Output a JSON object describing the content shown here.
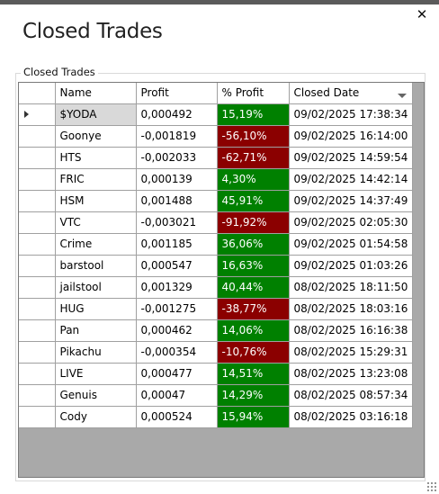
{
  "window": {
    "title": "Closed Trades",
    "close_glyph": "✕",
    "close_icon": "close-icon"
  },
  "group": {
    "label": "Closed Trades"
  },
  "grid": {
    "columns": [
      "Name",
      "Profit",
      "% Profit",
      "Closed Date"
    ],
    "sorted_column": "Closed Date",
    "sort_direction": "descending",
    "selected_row": 0,
    "colors": {
      "positive": "#008000",
      "negative": "#8b0000",
      "selected": "#d9d9d9"
    },
    "rows": [
      {
        "name": "$YODA",
        "profit": "0,000492",
        "pct": "15,19%",
        "date": "09/02/2025 17:38:34",
        "positive": true
      },
      {
        "name": "Goonye",
        "profit": "-0,001819",
        "pct": "-56,10%",
        "date": "09/02/2025 16:14:00",
        "positive": false
      },
      {
        "name": "HTS",
        "profit": "-0,002033",
        "pct": "-62,71%",
        "date": "09/02/2025 14:59:54",
        "positive": false
      },
      {
        "name": "FRIC",
        "profit": "0,000139",
        "pct": "4,30%",
        "date": "09/02/2025 14:42:14",
        "positive": true
      },
      {
        "name": "HSM",
        "profit": "0,001488",
        "pct": "45,91%",
        "date": "09/02/2025 14:37:49",
        "positive": true
      },
      {
        "name": "VTC",
        "profit": "-0,003021",
        "pct": "-91,92%",
        "date": "09/02/2025 02:05:30",
        "positive": false
      },
      {
        "name": "Crime",
        "profit": "0,001185",
        "pct": "36,06%",
        "date": "09/02/2025 01:54:58",
        "positive": true
      },
      {
        "name": "barstool",
        "profit": "0,000547",
        "pct": "16,63%",
        "date": "09/02/2025 01:03:26",
        "positive": true
      },
      {
        "name": "jailstool",
        "profit": "0,001329",
        "pct": "40,44%",
        "date": "08/02/2025 18:11:50",
        "positive": true
      },
      {
        "name": "HUG",
        "profit": "-0,001275",
        "pct": "-38,77%",
        "date": "08/02/2025 18:03:16",
        "positive": false
      },
      {
        "name": "Pan",
        "profit": "0,000462",
        "pct": "14,06%",
        "date": "08/02/2025 16:16:38",
        "positive": true
      },
      {
        "name": "Pikachu",
        "profit": "-0,000354",
        "pct": "-10,76%",
        "date": "08/02/2025 15:29:31",
        "positive": false
      },
      {
        "name": "LIVE",
        "profit": "0,000477",
        "pct": "14,51%",
        "date": "08/02/2025 13:23:08",
        "positive": true
      },
      {
        "name": "Genuis",
        "profit": "0,00047",
        "pct": "14,29%",
        "date": "08/02/2025 08:57:34",
        "positive": true
      },
      {
        "name": "Cody",
        "profit": "0,000524",
        "pct": "15,94%",
        "date": "08/02/2025 03:16:18",
        "positive": true
      }
    ]
  }
}
